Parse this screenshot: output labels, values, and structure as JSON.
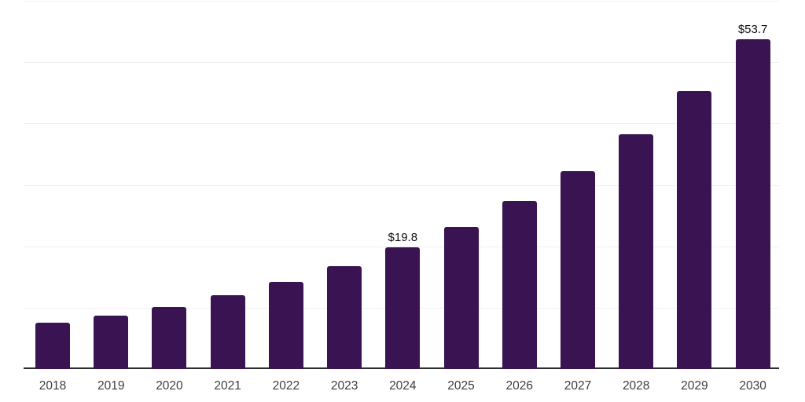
{
  "chart_data": {
    "type": "bar",
    "title": "",
    "xlabel": "",
    "ylabel": "",
    "categories": [
      "2018",
      "2019",
      "2020",
      "2021",
      "2022",
      "2023",
      "2024",
      "2025",
      "2026",
      "2027",
      "2028",
      "2029",
      "2030"
    ],
    "values": [
      7.5,
      8.7,
      10.1,
      12.0,
      14.2,
      16.8,
      19.8,
      23.1,
      27.4,
      32.3,
      38.2,
      45.3,
      53.7
    ],
    "value_labels": {
      "2024": "$19.8",
      "2030": "$53.7"
    },
    "ylim": [
      0,
      60
    ],
    "gridline_step": 10,
    "grid": true,
    "legend_position": "none",
    "bar_color": "#391352",
    "axis_color": "#2e2e2e",
    "gridline_color": "#efefef",
    "tick_label_color": "#3d3d3d",
    "value_label_color": "#111111"
  }
}
